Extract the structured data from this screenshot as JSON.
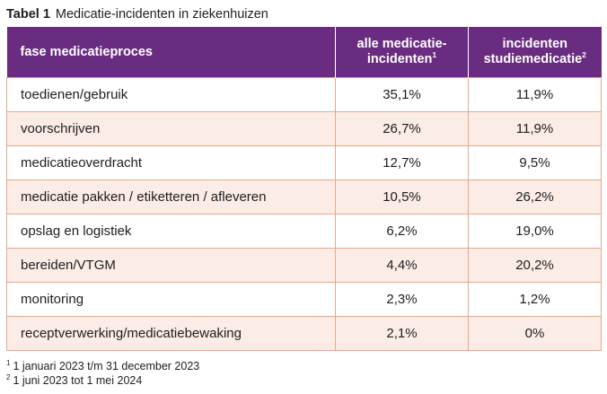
{
  "caption": {
    "number": "Tabel 1",
    "title": "Medicatie-incidenten in ziekenhuizen"
  },
  "table": {
    "headers": [
      {
        "label": "fase medicatieproces",
        "line1": "fase medicatieproces"
      },
      {
        "line1": "alle medicatie-",
        "line2": "incidenten",
        "sup": "1"
      },
      {
        "line1": "incidenten",
        "line2": "studiemedicatie",
        "sup": "2"
      }
    ],
    "rows": [
      {
        "phase": "toedienen/gebruik",
        "all": "35,1%",
        "study": "11,9%"
      },
      {
        "phase": "voorschrijven",
        "all": "26,7%",
        "study": "11,9%"
      },
      {
        "phase": "medicatieoverdracht",
        "all": "12,7%",
        "study": "9,5%"
      },
      {
        "phase": "medicatie pakken / etiketteren / afleveren",
        "all": "10,5%",
        "study": "26,2%"
      },
      {
        "phase": "opslag en logistiek",
        "all": "6,2%",
        "study": "19,0%"
      },
      {
        "phase": "bereiden/VTGM",
        "all": "4,4%",
        "study": "20,2%"
      },
      {
        "phase": "monitoring",
        "all": "2,3%",
        "study": "1,2%"
      },
      {
        "phase": "receptverwerking/medicatiebewaking",
        "all": "2,1%",
        "study": "0%"
      }
    ]
  },
  "footnotes": [
    {
      "mark": "1",
      "text": "1 januari 2023 t/m 31 december 2023"
    },
    {
      "mark": "2",
      "text": "1 juni 2023 tot 1 mei 2024"
    }
  ],
  "colors": {
    "header_bg": "#6a2c81",
    "stripe_bg": "#fcece6",
    "border": "#e6a88e"
  }
}
